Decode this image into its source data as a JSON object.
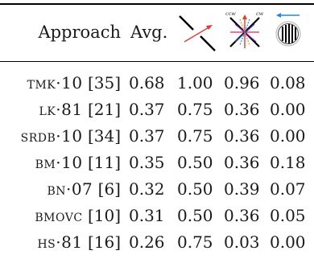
{
  "header": {
    "approach": "Approach",
    "avg": "Avg.",
    "col_icons": [
      "crossing-lines-red-arrow-icon",
      "star-cw-ccw-icon",
      "striped-circle-icon"
    ],
    "ccw_label": "ccw",
    "cw_label": "cw"
  },
  "rows": [
    {
      "name": "tmk·10",
      "ref": "[35]",
      "values": [
        "0.68",
        "1.00",
        "0.96",
        "0.08"
      ]
    },
    {
      "name": "lk·81",
      "ref": "[21]",
      "values": [
        "0.37",
        "0.75",
        "0.36",
        "0.00"
      ]
    },
    {
      "name": "srdb·10",
      "ref": "[34]",
      "values": [
        "0.37",
        "0.75",
        "0.36",
        "0.00"
      ]
    },
    {
      "name": "bm·10",
      "ref": "[11]",
      "values": [
        "0.35",
        "0.50",
        "0.36",
        "0.18"
      ]
    },
    {
      "name": "bn·07",
      "ref": "[6]",
      "values": [
        "0.32",
        "0.50",
        "0.39",
        "0.07"
      ]
    },
    {
      "name": "bmovc",
      "ref": "[10]",
      "values": [
        "0.31",
        "0.50",
        "0.36",
        "0.05"
      ]
    },
    {
      "name": "hs·81",
      "ref": "[16]",
      "values": [
        "0.26",
        "0.75",
        "0.03",
        "0.00"
      ]
    }
  ]
}
